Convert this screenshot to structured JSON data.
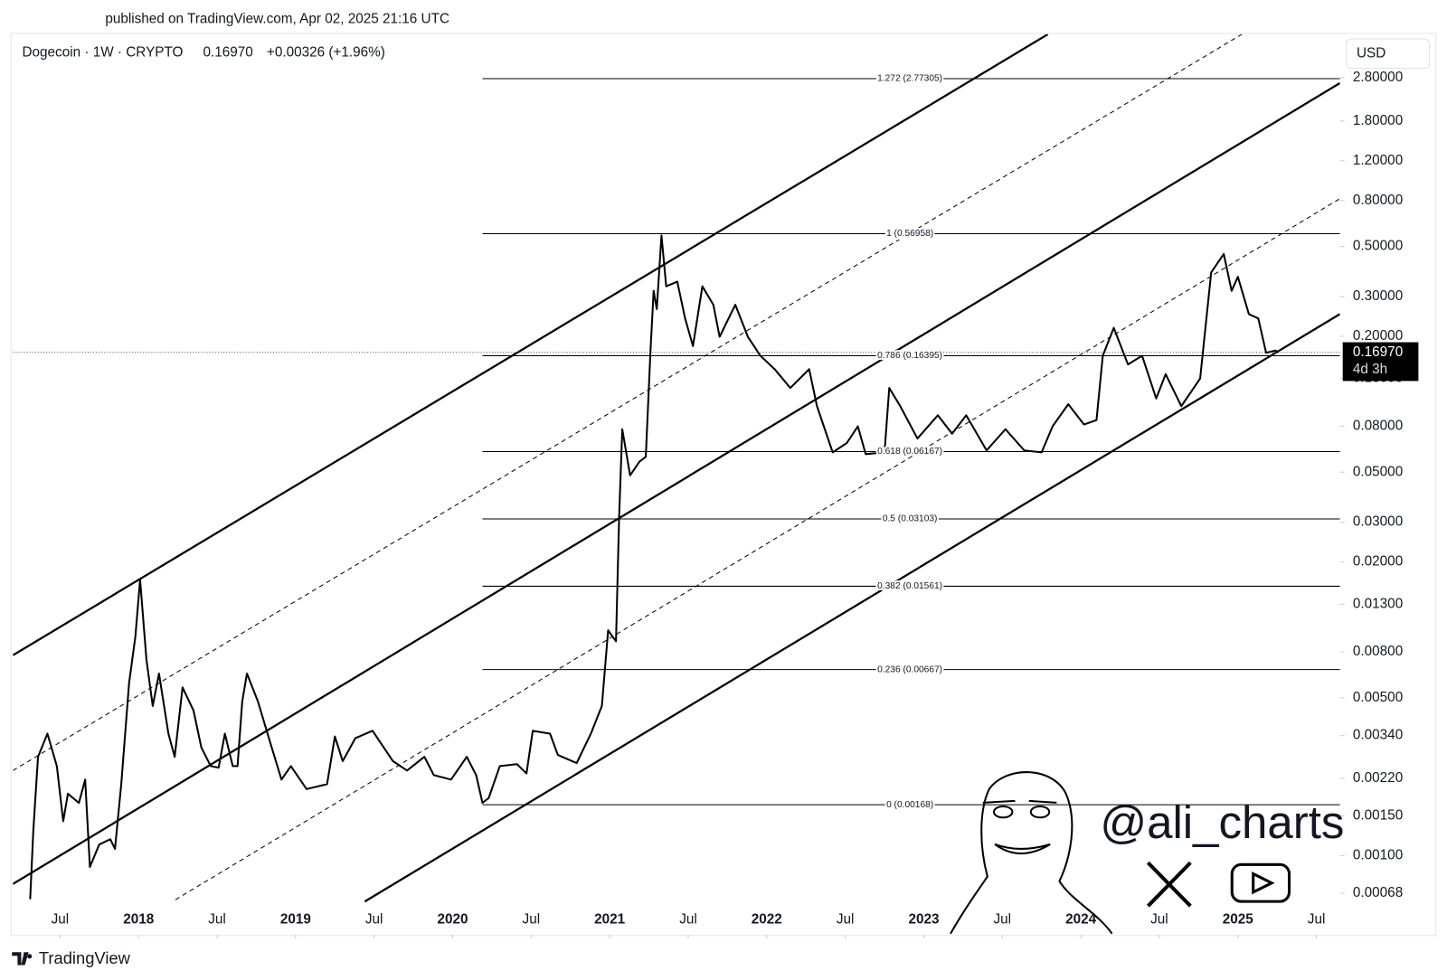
{
  "published": "published on TradingView.com, Apr 02, 2025 21:16 UTC",
  "footer": "TradingView",
  "watermark": "@ali_charts",
  "chart_data": {
    "type": "line",
    "symbol": "Dogecoin · 1W · CRYPTO",
    "last": "0.16970",
    "change": "+0.00326 (+1.96%)",
    "currency": "USD",
    "log_scale": true,
    "color": "#000000",
    "xlim": [
      2017.2,
      2025.65
    ],
    "ylim": [
      0.000446,
      4.36
    ],
    "xticks": [
      {
        "value": 2017.5,
        "label": "Jul"
      },
      2018,
      {
        "value": 2018.5,
        "label": "Jul"
      },
      2019,
      {
        "value": 2019.5,
        "label": "Jul"
      },
      2020,
      {
        "value": 2020.5,
        "label": "Jul"
      },
      2021,
      {
        "value": 2021.5,
        "label": "Jul"
      },
      2022,
      {
        "value": 2022.5,
        "label": "Jul"
      },
      2023,
      {
        "value": 2023.5,
        "label": "Jul"
      },
      2024,
      {
        "value": 2024.5,
        "label": "Jul"
      },
      2025,
      {
        "value": 2025.5,
        "label": "Jul"
      }
    ],
    "yticks": [
      {
        "value": 2.8,
        "label": "2.80000"
      },
      {
        "value": 1.8,
        "label": "1.80000"
      },
      {
        "value": 1.2,
        "label": "1.20000"
      },
      {
        "value": 0.8,
        "label": "0.80000"
      },
      {
        "value": 0.5,
        "label": "0.50000"
      },
      {
        "value": 0.3,
        "label": "0.30000"
      },
      {
        "value": 0.2,
        "label": "0.20000"
      },
      {
        "value": 0.13,
        "label": "0.13000"
      },
      {
        "value": 0.08,
        "label": "0.08000"
      },
      {
        "value": 0.05,
        "label": "0.05000"
      },
      {
        "value": 0.03,
        "label": "0.03000"
      },
      {
        "value": 0.02,
        "label": "0.02000"
      },
      {
        "value": 0.013,
        "label": "0.01300"
      },
      {
        "value": 0.008,
        "label": "0.00800"
      },
      {
        "value": 0.005,
        "label": "0.00500"
      },
      {
        "value": 0.0034,
        "label": "0.00340"
      },
      {
        "value": 0.0022,
        "label": "0.00220"
      },
      {
        "value": 0.0015,
        "label": "0.00150"
      },
      {
        "value": 0.001,
        "label": "0.00100"
      },
      {
        "value": 0.00068,
        "label": "0.00068"
      }
    ],
    "x": [
      2017.31,
      2017.33,
      2017.36,
      2017.42,
      2017.48,
      2017.52,
      2017.55,
      2017.62,
      2017.66,
      2017.69,
      2017.75,
      2017.82,
      2017.85,
      2017.89,
      2017.94,
      2017.98,
      2018.01,
      2018.05,
      2018.09,
      2018.13,
      2018.19,
      2018.23,
      2018.28,
      2018.35,
      2018.4,
      2018.46,
      2018.51,
      2018.55,
      2018.6,
      2018.63,
      2018.66,
      2018.69,
      2018.76,
      2018.83,
      2018.91,
      2018.97,
      2019.07,
      2019.2,
      2019.25,
      2019.3,
      2019.38,
      2019.49,
      2019.62,
      2019.71,
      2019.82,
      2019.88,
      2019.99,
      2020.09,
      2020.15,
      2020.19,
      2020.23,
      2020.3,
      2020.41,
      2020.47,
      2020.51,
      2020.62,
      2020.67,
      2020.79,
      2020.88,
      2020.95,
      2020.99,
      2021.04,
      2021.06,
      2021.08,
      2021.13,
      2021.19,
      2021.23,
      2021.26,
      2021.28,
      2021.3,
      2021.33,
      2021.36,
      2021.43,
      2021.48,
      2021.53,
      2021.59,
      2021.66,
      2021.7,
      2021.8,
      2021.88,
      2021.96,
      2022.05,
      2022.15,
      2022.27,
      2022.32,
      2022.42,
      2022.51,
      2022.58,
      2022.63,
      2022.75,
      2022.78,
      2022.85,
      2022.96,
      2023.09,
      2023.18,
      2023.27,
      2023.4,
      2023.52,
      2023.64,
      2023.75,
      2023.82,
      2023.92,
      2024.02,
      2024.1,
      2024.14,
      2024.21,
      2024.3,
      2024.39,
      2024.48,
      2024.54,
      2024.64,
      2024.76,
      2024.83,
      2024.91,
      2024.96,
      2025.0,
      2025.07,
      2025.13,
      2025.18,
      2025.24,
      2025.26
    ],
    "values": [
      0.00064,
      0.00129,
      0.00274,
      0.00347,
      0.00249,
      0.00142,
      0.00188,
      0.00171,
      0.00217,
      0.00089,
      0.00112,
      0.00118,
      0.00107,
      0.00207,
      0.00582,
      0.00934,
      0.0167,
      0.00737,
      0.0046,
      0.0064,
      0.00347,
      0.00274,
      0.00556,
      0.00439,
      0.00301,
      0.00249,
      0.00245,
      0.00347,
      0.00249,
      0.00249,
      0.00482,
      0.0064,
      0.00482,
      0.00331,
      0.00217,
      0.00249,
      0.00197,
      0.00207,
      0.00337,
      0.00262,
      0.00331,
      0.00357,
      0.00262,
      0.00238,
      0.00274,
      0.00227,
      0.00217,
      0.00274,
      0.00227,
      0.00171,
      0.0018,
      0.00249,
      0.00254,
      0.00231,
      0.00357,
      0.00347,
      0.00279,
      0.00257,
      0.00347,
      0.0046,
      0.00996,
      0.00889,
      0.0317,
      0.0775,
      0.0484,
      0.0557,
      0.0585,
      0.173,
      0.318,
      0.264,
      0.56,
      0.333,
      0.349,
      0.24,
      0.181,
      0.333,
      0.276,
      0.199,
      0.276,
      0.199,
      0.164,
      0.143,
      0.118,
      0.143,
      0.0981,
      0.0612,
      0.0673,
      0.0798,
      0.0601,
      0.0612,
      0.118,
      0.0981,
      0.0705,
      0.0893,
      0.074,
      0.0893,
      0.0624,
      0.0775,
      0.0624,
      0.0612,
      0.0798,
      0.1,
      0.0813,
      0.0851,
      0.164,
      0.218,
      0.15,
      0.164,
      0.106,
      0.136,
      0.0981,
      0.13,
      0.384,
      0.463,
      0.318,
      0.367,
      0.251,
      0.24,
      0.169,
      0.173,
      0.1697
    ],
    "current_price": {
      "value": 0.1697,
      "label": "0.16970",
      "countdown": "4d 3h"
    },
    "fib_levels": [
      {
        "value": 2.77305,
        "label": "1.272 (2.77305)"
      },
      {
        "value": 0.56958,
        "label": "1 (0.56958)"
      },
      {
        "value": 0.16395,
        "label": "0.786 (0.16395)"
      },
      {
        "value": 0.06167,
        "label": "0.618 (0.06167)"
      },
      {
        "value": 0.03103,
        "label": "0.5 (0.03103)"
      },
      {
        "value": 0.01561,
        "label": "0.382 (0.01561)"
      },
      {
        "value": 0.00667,
        "label": "0.236 (0.00667)"
      },
      {
        "value": 0.00168,
        "label": "0 (0.00168)"
      }
    ],
    "fib_start": 2020.19,
    "channels": [
      {
        "x": [
          2017.2,
          2023.79
        ],
        "values": [
          0.00772,
          4.36
        ],
        "dashed": false
      },
      {
        "x": [
          2017.2,
          2025.025
        ],
        "values": [
          0.00238,
          4.36
        ],
        "dashed": true
      },
      {
        "x": [
          2017.2,
          2025.65
        ],
        "values": [
          0.000748,
          2.65
        ],
        "dashed": false
      },
      {
        "x": [
          2018.235,
          2025.65
        ],
        "values": [
          0.000637,
          0.815
        ],
        "dashed": true
      },
      {
        "x": [
          2019.44,
          2025.65
        ],
        "values": [
          0.000625,
          0.251
        ],
        "dashed": false
      }
    ]
  }
}
